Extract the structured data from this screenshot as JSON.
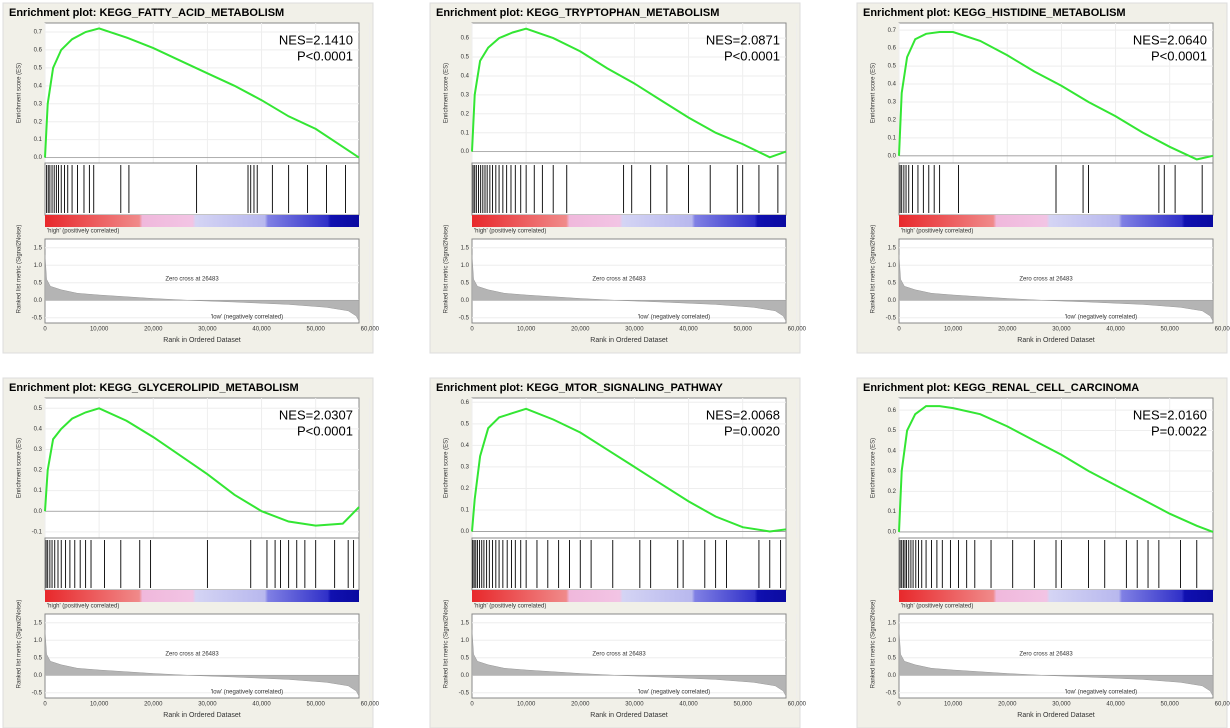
{
  "chart_data": [
    {
      "type": "line",
      "title": "Enrichment plot: KEGG_FATTY_ACID_METABOLISM",
      "nes": "NES=2.1410",
      "pvalue": "P<0.0001",
      "ylabel": "Enrichment score (ES)",
      "xlabel": "Rank in Ordered Dataset",
      "metric_ylabel": "Ranked list metric (Signal2Noise)",
      "high_label": "'high' (positively correlated)",
      "low_label": "'low' (negatively correlated)",
      "zero_cross": "Zero cross at 26483",
      "color": "#33e633",
      "grid": true,
      "x": [
        0,
        500,
        1500,
        3000,
        5000,
        7500,
        10000,
        15000,
        20000,
        25000,
        30000,
        35000,
        40000,
        45000,
        50000,
        55000,
        58000
      ],
      "values": [
        0,
        0.3,
        0.5,
        0.6,
        0.66,
        0.7,
        0.72,
        0.67,
        0.61,
        0.54,
        0.47,
        0.4,
        0.32,
        0.23,
        0.16,
        0.06,
        0.0
      ],
      "xlim": [
        0,
        58000
      ],
      "xticks": [
        0,
        {
          "value": 10000,
          "label": "10,000"
        },
        {
          "value": 20000,
          "label": "20,000"
        },
        {
          "value": 30000,
          "label": "30,000"
        },
        {
          "value": 40000,
          "label": "40,000"
        },
        {
          "value": 50000,
          "label": "50,000"
        },
        {
          "value": 60000,
          "label": "60,000"
        }
      ],
      "ylim": [
        -0.03,
        0.75
      ],
      "yticks": [
        {
          "value": 0,
          "label": "0.0"
        },
        0.1,
        0.2,
        0.3,
        0.4,
        0.5,
        0.6,
        0.7
      ],
      "hits": [
        300,
        600,
        900,
        1300,
        1700,
        2100,
        2500,
        3000,
        3600,
        4200,
        5000,
        6000,
        7200,
        8200,
        9000,
        14000,
        15500,
        28000,
        37500,
        38000,
        38600,
        39200,
        42000,
        45000,
        48500,
        52000,
        55500
      ],
      "metric": {
        "x": [
          0,
          300,
          1000,
          3000,
          6000,
          10000,
          20000,
          26483,
          35000,
          45000,
          52000,
          56000,
          57500,
          58000
        ],
        "values": [
          1.3,
          0.6,
          0.4,
          0.3,
          0.2,
          0.15,
          0.05,
          0,
          -0.05,
          -0.12,
          -0.2,
          -0.3,
          -0.45,
          -0.6
        ],
        "ylim": [
          -0.65,
          1.75
        ],
        "yticks": [
          1.5,
          {
            "value": 1,
            "label": "1.0"
          },
          0.5,
          {
            "value": 0,
            "label": "0.0"
          },
          -0.5
        ]
      }
    },
    {
      "type": "line",
      "title": "Enrichment plot: KEGG_TRYPTOPHAN_METABOLISM",
      "nes": "NES=2.0871",
      "pvalue": "P<0.0001",
      "ylabel": "Enrichment score (ES)",
      "xlabel": "Rank in Ordered Dataset",
      "metric_ylabel": "Ranked list metric (Signal2Noise)",
      "high_label": "'high' (positively correlated)",
      "low_label": "'low' (negatively correlated)",
      "zero_cross": "Zero cross at 26483",
      "color": "#33e633",
      "grid": true,
      "x": [
        0,
        500,
        1500,
        3000,
        5000,
        7500,
        10000,
        15000,
        20000,
        25000,
        30000,
        35000,
        40000,
        45000,
        50000,
        55000,
        58000
      ],
      "values": [
        0,
        0.3,
        0.48,
        0.55,
        0.6,
        0.63,
        0.65,
        0.6,
        0.53,
        0.44,
        0.36,
        0.27,
        0.18,
        0.1,
        0.04,
        -0.03,
        0.0
      ],
      "xlim": [
        0,
        58000
      ],
      "xticks": [
        0,
        {
          "value": 10000,
          "label": "10,000"
        },
        {
          "value": 20000,
          "label": "20,000"
        },
        {
          "value": 30000,
          "label": "30,000"
        },
        {
          "value": 40000,
          "label": "40,000"
        },
        {
          "value": 50000,
          "label": "50,000"
        },
        {
          "value": 60000,
          "label": "60,000"
        }
      ],
      "ylim": [
        -0.06,
        0.68
      ],
      "yticks": [
        {
          "value": 0,
          "label": "0.0"
        },
        0.1,
        0.2,
        0.3,
        0.4,
        0.5,
        0.6
      ],
      "hits": [
        200,
        500,
        800,
        1200,
        1600,
        2000,
        2400,
        2800,
        3300,
        3800,
        4400,
        5000,
        5700,
        6400,
        7200,
        8000,
        9000,
        10000,
        11500,
        13000,
        15000,
        17500,
        28000,
        29500,
        33000,
        36000,
        40000,
        44000,
        49000,
        50000,
        53000,
        56500
      ],
      "metric": {
        "x": [
          0,
          300,
          1000,
          3000,
          6000,
          10000,
          20000,
          26483,
          35000,
          45000,
          52000,
          56000,
          57500,
          58000
        ],
        "values": [
          1.3,
          0.6,
          0.4,
          0.3,
          0.2,
          0.15,
          0.05,
          0,
          -0.05,
          -0.12,
          -0.2,
          -0.3,
          -0.45,
          -0.6
        ],
        "ylim": [
          -0.65,
          1.75
        ],
        "yticks": [
          1.5,
          {
            "value": 1,
            "label": "1.0"
          },
          0.5,
          {
            "value": 0,
            "label": "0.0"
          },
          -0.5
        ]
      }
    },
    {
      "type": "line",
      "title": "Enrichment plot: KEGG_HISTIDINE_METABOLISM",
      "nes": "NES=2.0640",
      "pvalue": "P<0.0001",
      "ylabel": "Enrichment score (ES)",
      "xlabel": "Rank in Ordered Dataset",
      "metric_ylabel": "Ranked list metric (Signal2Noise)",
      "high_label": "'high' (positively correlated)",
      "low_label": "'low' (negatively correlated)",
      "zero_cross": "Zero cross at 26483",
      "color": "#33e633",
      "grid": true,
      "x": [
        0,
        500,
        1500,
        3000,
        5000,
        7500,
        10000,
        15000,
        20000,
        25000,
        30000,
        35000,
        40000,
        45000,
        50000,
        55000,
        58000
      ],
      "values": [
        0,
        0.35,
        0.55,
        0.65,
        0.68,
        0.69,
        0.69,
        0.64,
        0.56,
        0.47,
        0.39,
        0.3,
        0.22,
        0.13,
        0.05,
        -0.02,
        0.0
      ],
      "xlim": [
        0,
        58000
      ],
      "xticks": [
        0,
        {
          "value": 10000,
          "label": "10,000"
        },
        {
          "value": 20000,
          "label": "20,000"
        },
        {
          "value": 30000,
          "label": "30,000"
        },
        {
          "value": 40000,
          "label": "40,000"
        },
        {
          "value": 50000,
          "label": "50,000"
        },
        {
          "value": 60000,
          "label": "60,000"
        }
      ],
      "ylim": [
        -0.04,
        0.74
      ],
      "yticks": [
        {
          "value": 0,
          "label": "0.0"
        },
        0.1,
        0.2,
        0.3,
        0.4,
        0.5,
        0.6,
        0.7
      ],
      "hits": [
        200,
        500,
        900,
        1300,
        1800,
        2500,
        3500,
        4500,
        5500,
        6500,
        7500,
        11000,
        29000,
        34000,
        35000,
        48000,
        49000,
        51000,
        56000
      ],
      "metric": {
        "x": [
          0,
          300,
          1000,
          3000,
          6000,
          10000,
          20000,
          26483,
          35000,
          45000,
          52000,
          56000,
          57500,
          58000
        ],
        "values": [
          1.3,
          0.6,
          0.4,
          0.3,
          0.2,
          0.15,
          0.05,
          0,
          -0.05,
          -0.12,
          -0.2,
          -0.3,
          -0.45,
          -0.6
        ],
        "ylim": [
          -0.65,
          1.75
        ],
        "yticks": [
          1.5,
          {
            "value": 1,
            "label": "1.0"
          },
          0.5,
          {
            "value": 0,
            "label": "0.0"
          },
          -0.5
        ]
      }
    },
    {
      "type": "line",
      "title": "Enrichment plot: KEGG_GLYCEROLIPID_METABOLISM",
      "nes": "NES=2.0307",
      "pvalue": "P<0.0001",
      "ylabel": "Enrichment score (ES)",
      "xlabel": "Rank in Ordered Dataset",
      "metric_ylabel": "Ranked list metric (Signal2Noise)",
      "high_label": "'high' (positively correlated)",
      "low_label": "'low' (negatively correlated)",
      "zero_cross": "Zero cross at 26483",
      "color": "#33e633",
      "grid": true,
      "x": [
        0,
        500,
        1500,
        3000,
        5000,
        7500,
        10000,
        15000,
        20000,
        25000,
        30000,
        35000,
        40000,
        45000,
        50000,
        55000,
        58000
      ],
      "values": [
        0,
        0.2,
        0.35,
        0.4,
        0.45,
        0.48,
        0.5,
        0.44,
        0.36,
        0.27,
        0.18,
        0.08,
        0.0,
        -0.05,
        -0.07,
        -0.06,
        0.02
      ],
      "xlim": [
        0,
        58000
      ],
      "xticks": [
        0,
        {
          "value": 10000,
          "label": "10,000"
        },
        {
          "value": 20000,
          "label": "20,000"
        },
        {
          "value": 30000,
          "label": "30,000"
        },
        {
          "value": 40000,
          "label": "40,000"
        },
        {
          "value": 50000,
          "label": "50,000"
        },
        {
          "value": 60000,
          "label": "60,000"
        }
      ],
      "ylim": [
        -0.13,
        0.55
      ],
      "yticks": [
        -0.1,
        {
          "value": 0,
          "label": "0.0"
        },
        0.1,
        0.2,
        0.3,
        0.4,
        0.5
      ],
      "hits": [
        200,
        500,
        900,
        1300,
        1800,
        2400,
        3000,
        3800,
        4600,
        5500,
        6500,
        7500,
        8500,
        11000,
        14000,
        17500,
        19500,
        30000,
        38000,
        41000,
        42500,
        43500,
        45000,
        46500,
        48000,
        50000,
        53500,
        56000,
        57000
      ],
      "metric": {
        "x": [
          0,
          300,
          1000,
          3000,
          6000,
          10000,
          20000,
          26483,
          35000,
          45000,
          52000,
          56000,
          57500,
          58000
        ],
        "values": [
          1.3,
          0.6,
          0.4,
          0.3,
          0.2,
          0.15,
          0.05,
          0,
          -0.05,
          -0.12,
          -0.2,
          -0.3,
          -0.45,
          -0.6
        ],
        "ylim": [
          -0.65,
          1.75
        ],
        "yticks": [
          1.5,
          {
            "value": 1,
            "label": "1.0"
          },
          0.5,
          {
            "value": 0,
            "label": "0.0"
          },
          -0.5
        ]
      }
    },
    {
      "type": "line",
      "title": "Enrichment plot: KEGG_MTOR_SIGNALING_PATHWAY",
      "nes": "NES=2.0068",
      "pvalue": "P=0.0020",
      "ylabel": "Enrichment score (ES)",
      "xlabel": "Rank in Ordered Dataset",
      "metric_ylabel": "Ranked list metric (Signal2Noise)",
      "high_label": "'high' (positively correlated)",
      "low_label": "'low' (negatively correlated)",
      "zero_cross": "Zero cross at 26483",
      "color": "#33e633",
      "grid": true,
      "x": [
        0,
        500,
        1500,
        3000,
        5000,
        7500,
        10000,
        15000,
        20000,
        25000,
        30000,
        35000,
        40000,
        45000,
        50000,
        55000,
        58000
      ],
      "values": [
        0,
        0.15,
        0.35,
        0.48,
        0.53,
        0.55,
        0.57,
        0.52,
        0.46,
        0.38,
        0.3,
        0.22,
        0.14,
        0.07,
        0.02,
        0.0,
        0.01
      ],
      "xlim": [
        0,
        58000
      ],
      "xticks": [
        0,
        {
          "value": 10000,
          "label": "10,000"
        },
        {
          "value": 20000,
          "label": "20,000"
        },
        {
          "value": 30000,
          "label": "30,000"
        },
        {
          "value": 40000,
          "label": "40,000"
        },
        {
          "value": 50000,
          "label": "50,000"
        },
        {
          "value": 60000,
          "label": "60,000"
        }
      ],
      "ylim": [
        -0.03,
        0.62
      ],
      "yticks": [
        {
          "value": 0,
          "label": "0.0"
        },
        0.1,
        0.2,
        0.3,
        0.4,
        0.5,
        0.6
      ],
      "hits": [
        150,
        400,
        700,
        1000,
        1400,
        1800,
        2200,
        2700,
        3200,
        3800,
        4400,
        5000,
        5700,
        6500,
        7300,
        8000,
        9000,
        10000,
        12000,
        14000,
        16000,
        18000,
        20000,
        22000,
        26000,
        31000,
        33000,
        38000,
        39000,
        43000,
        45000,
        47000,
        53000,
        55000,
        57000
      ],
      "metric": {
        "x": [
          0,
          300,
          1000,
          3000,
          6000,
          10000,
          20000,
          26483,
          35000,
          45000,
          52000,
          56000,
          57500,
          58000
        ],
        "values": [
          1.3,
          0.6,
          0.4,
          0.3,
          0.2,
          0.15,
          0.05,
          0,
          -0.05,
          -0.12,
          -0.2,
          -0.3,
          -0.45,
          -0.6
        ],
        "ylim": [
          -0.65,
          1.75
        ],
        "yticks": [
          1.5,
          {
            "value": 1,
            "label": "1.0"
          },
          0.5,
          {
            "value": 0,
            "label": "0.0"
          },
          -0.5
        ]
      }
    },
    {
      "type": "line",
      "title": "Enrichment plot: KEGG_RENAL_CELL_CARCINOMA",
      "nes": "NES=2.0160",
      "pvalue": "P=0.0022",
      "ylabel": "Enrichment score (ES)",
      "xlabel": "Rank in Ordered Dataset",
      "metric_ylabel": "Ranked list metric (Signal2Noise)",
      "high_label": "'high' (positively correlated)",
      "low_label": "'low' (negatively correlated)",
      "zero_cross": "Zero cross at 26483",
      "color": "#33e633",
      "grid": true,
      "x": [
        0,
        500,
        1500,
        3000,
        5000,
        7500,
        10000,
        15000,
        20000,
        25000,
        30000,
        35000,
        40000,
        45000,
        50000,
        55000,
        58000
      ],
      "values": [
        0,
        0.3,
        0.5,
        0.58,
        0.62,
        0.62,
        0.61,
        0.58,
        0.52,
        0.45,
        0.38,
        0.3,
        0.23,
        0.16,
        0.09,
        0.03,
        0.0
      ],
      "xlim": [
        0,
        58000
      ],
      "xticks": [
        0,
        {
          "value": 10000,
          "label": "10,000"
        },
        {
          "value": 20000,
          "label": "20,000"
        },
        {
          "value": 30000,
          "label": "30,000"
        },
        {
          "value": 40000,
          "label": "40,000"
        },
        {
          "value": 50000,
          "label": "50,000"
        },
        {
          "value": 60000,
          "label": "60,000"
        }
      ],
      "ylim": [
        -0.03,
        0.66
      ],
      "yticks": [
        {
          "value": 0,
          "label": "0.0"
        },
        0.1,
        0.2,
        0.3,
        0.4,
        0.5,
        0.6
      ],
      "hits": [
        200,
        500,
        800,
        1100,
        1400,
        1800,
        2200,
        2600,
        3100,
        3600,
        4200,
        5000,
        6000,
        7000,
        8000,
        9500,
        11000,
        12500,
        14000,
        17000,
        21000,
        25000,
        29000,
        30000,
        35000,
        38000,
        42000,
        44000,
        46000,
        48000,
        52000,
        55000
      ],
      "metric": {
        "x": [
          0,
          300,
          1000,
          3000,
          6000,
          10000,
          20000,
          26483,
          35000,
          45000,
          52000,
          56000,
          57500,
          58000
        ],
        "values": [
          1.3,
          0.6,
          0.4,
          0.3,
          0.2,
          0.15,
          0.05,
          0,
          -0.05,
          -0.12,
          -0.2,
          -0.3,
          -0.45,
          -0.6
        ],
        "ylim": [
          -0.65,
          1.75
        ],
        "yticks": [
          1.5,
          {
            "value": 1,
            "label": "1.0"
          },
          0.5,
          {
            "value": 0,
            "label": "0.0"
          },
          -0.5
        ]
      }
    }
  ]
}
